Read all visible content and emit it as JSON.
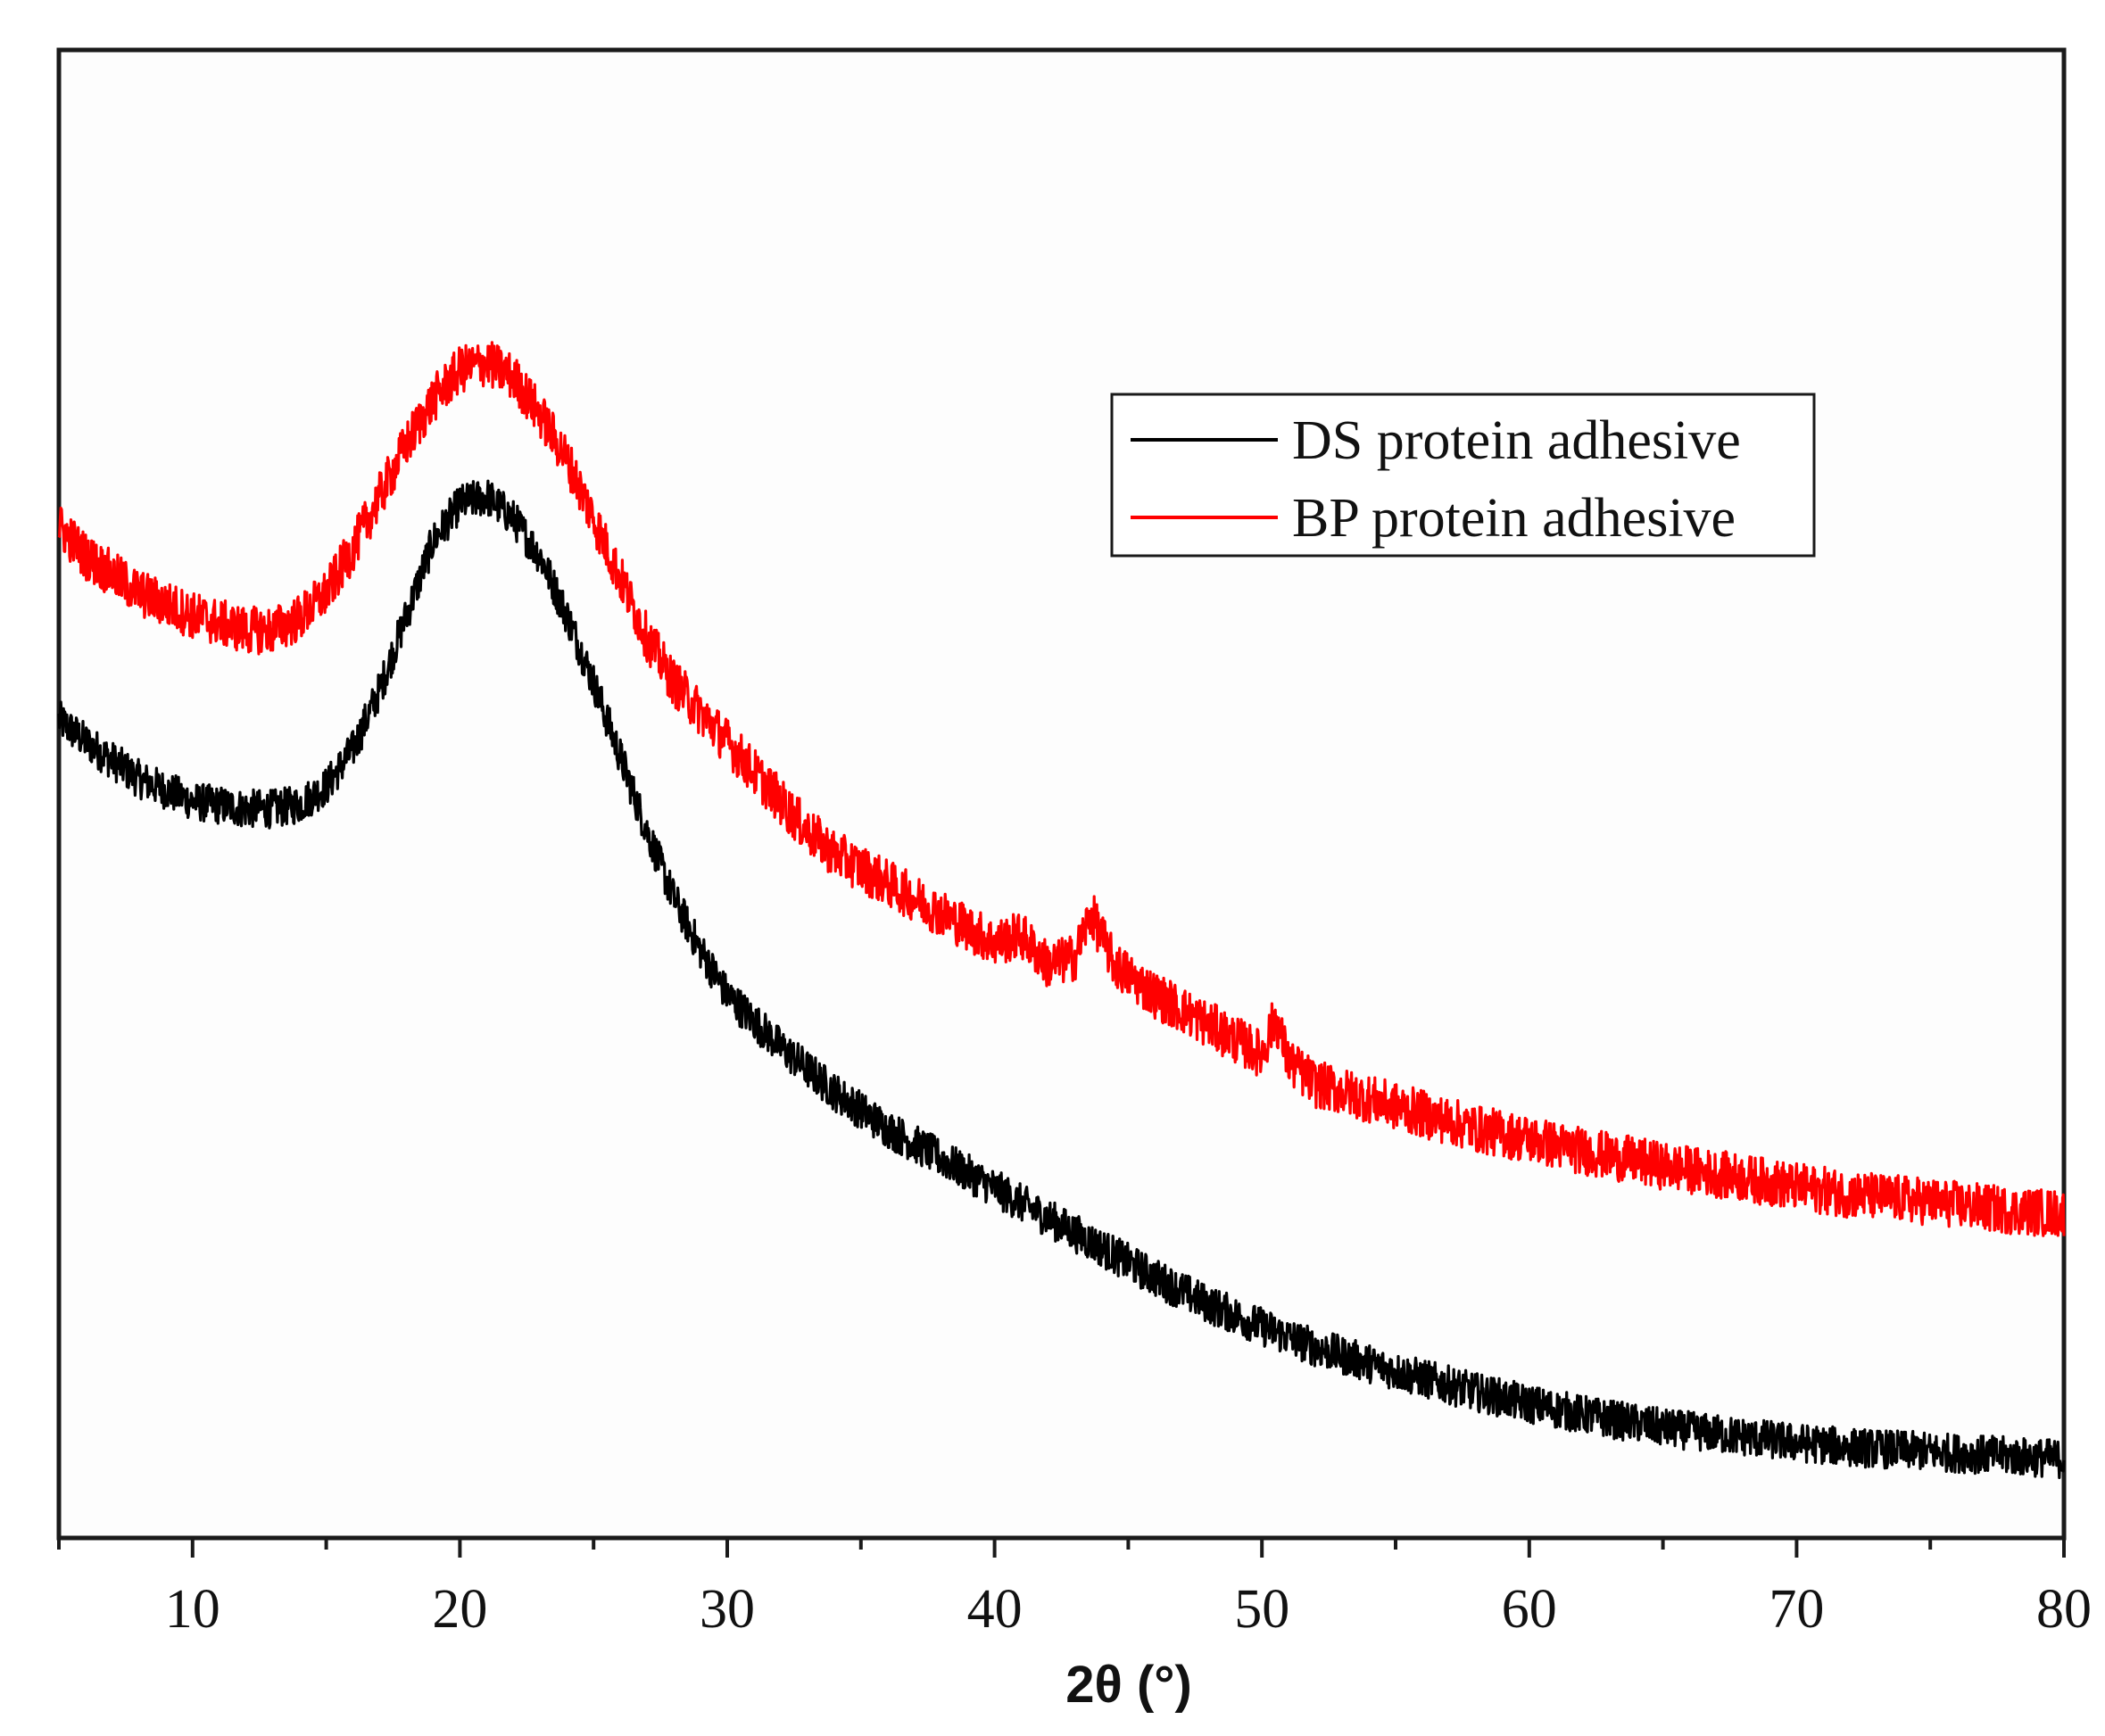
{
  "chart_data": {
    "type": "line",
    "title": "",
    "xlabel": "2θ (°)",
    "ylabel": "",
    "xlim": [
      5,
      80
    ],
    "ylim": [
      0,
      100
    ],
    "x_ticks": [
      10,
      20,
      30,
      40,
      50,
      60,
      70,
      80
    ],
    "y_ticks_visible": false,
    "grid": false,
    "legend_position": "top-right",
    "series": [
      {
        "name": "DS protein adhesive",
        "color": "#000000",
        "noise": 1.3,
        "x": [
          5,
          6,
          8,
          10,
          12,
          13,
          14,
          15,
          16,
          17,
          18,
          19,
          20,
          21,
          22,
          23,
          24,
          25,
          26,
          27,
          28,
          29,
          30,
          32,
          34,
          36,
          38,
          40,
          42,
          44,
          46,
          48,
          50,
          52,
          55,
          58,
          60,
          62,
          65,
          68,
          70,
          72,
          75,
          78,
          80
        ],
        "y": [
          55,
          53.5,
          51,
          49.5,
          49,
          49,
          49.3,
          50.5,
          53,
          57,
          62,
          67,
          69.5,
          70,
          68.5,
          66,
          62,
          57.5,
          52.5,
          47.5,
          43,
          39.5,
          36.5,
          33,
          30,
          27.5,
          25.5,
          23.5,
          21.5,
          19.5,
          17.5,
          15.7,
          14.2,
          12.8,
          11.2,
          9.8,
          9,
          8.3,
          7.4,
          6.8,
          6.4,
          6.1,
          5.8,
          5.5,
          5.3
        ]
      },
      {
        "name": "BP protein adhesive",
        "color": "#ff0000",
        "noise": 1.6,
        "x": [
          5,
          6,
          8,
          10,
          12,
          13,
          14,
          15,
          16,
          17,
          18,
          19,
          20,
          21,
          22,
          23,
          24,
          25,
          26,
          27,
          28,
          29,
          30,
          31,
          32,
          33,
          34,
          35,
          36,
          38,
          40,
          41,
          42,
          43,
          43.6,
          44.5,
          46,
          48,
          49,
          50,
          50.5,
          51,
          52,
          54,
          56,
          58,
          60,
          62,
          65,
          68,
          70,
          72,
          75,
          78,
          80
        ],
        "y": [
          68,
          66,
          63.5,
          62,
          61,
          61,
          61.8,
          63.5,
          66.5,
          70,
          73.5,
          76.5,
          78.5,
          79,
          78,
          75.5,
          72.5,
          68.5,
          64.5,
          60.5,
          57.5,
          55.5,
          53.5,
          51.5,
          49.5,
          47.5,
          46,
          45,
          44,
          42,
          40,
          40.5,
          38.5,
          39,
          42,
          38.5,
          36.5,
          34.5,
          33.5,
          32.5,
          35,
          32,
          30.5,
          29.5,
          28.5,
          27.5,
          26.8,
          26,
          25,
          24.2,
          23.6,
          23.1,
          22.6,
          22,
          21.8
        ]
      }
    ]
  }
}
